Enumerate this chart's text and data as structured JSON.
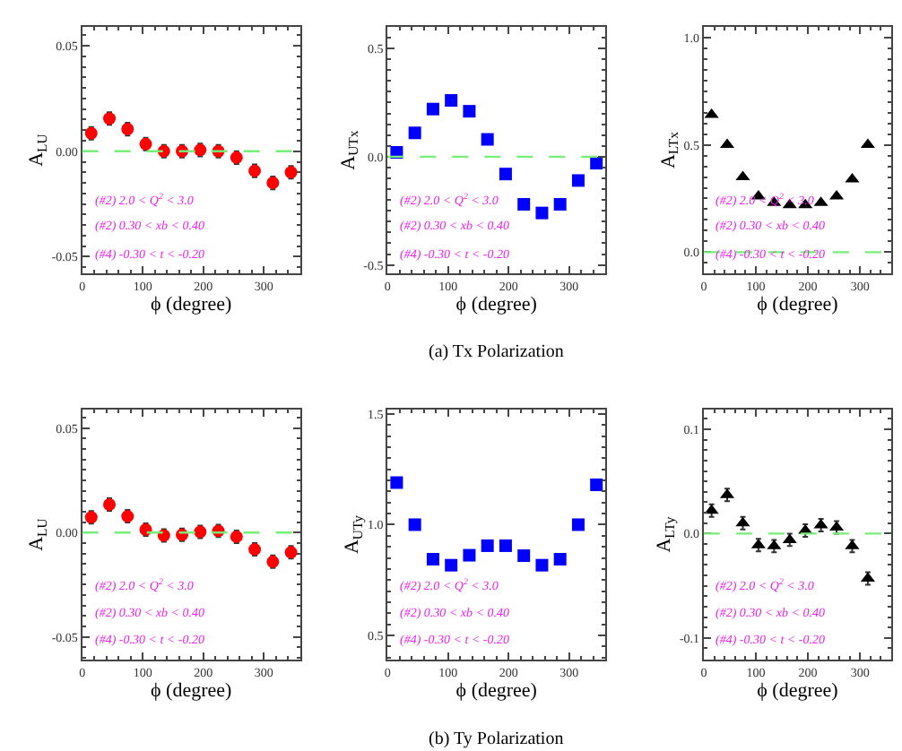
{
  "chart_data": [
    {
      "type": "scatter",
      "xlabel": "ϕ (degree)",
      "ylabel": "A$_{LU}$",
      "marker": "circle",
      "color": "#ff0000",
      "x": [
        15,
        45,
        75,
        105,
        135,
        165,
        195,
        225,
        255,
        285,
        315,
        345
      ],
      "values": [
        0.0085,
        0.0155,
        0.0105,
        0.0034,
        0.0,
        0.0,
        0.0006,
        0.0,
        -0.003,
        -0.0093,
        -0.015,
        -0.01
      ],
      "errors": [
        0.003,
        0.003,
        0.003,
        0.003,
        0.003,
        0.003,
        0.003,
        0.003,
        0.003,
        0.003,
        0.003,
        0.003
      ],
      "xlim": [
        0,
        360
      ],
      "xticks": [
        0,
        100,
        200,
        300
      ],
      "ylim": [
        -0.058,
        0.059
      ],
      "yticks": [
        {
          "value": -0.05,
          "label": "-0.05"
        },
        {
          "value": 0,
          "label": "0.00"
        },
        {
          "value": 0.05,
          "label": "0.05"
        }
      ],
      "ref_lines": [
        {
          "axis": "y",
          "value": 0,
          "color": "#77ee77",
          "line_style": "dashed"
        }
      ],
      "annotations": [
        "(#2) 2.0 < Q$^{2}$ < 3.0",
        "(#2) 0.30 < xb < 0.40",
        "(#4) -0.30 < t < -0.20"
      ]
    },
    {
      "type": "scatter",
      "xlabel": "ϕ (degree)",
      "ylabel": "A$_{UTx}$",
      "marker": "square",
      "color": "#0000ff",
      "x": [
        15,
        45,
        75,
        105,
        135,
        165,
        195,
        225,
        255,
        285,
        315,
        345
      ],
      "values": [
        0.02,
        0.11,
        0.22,
        0.26,
        0.21,
        0.08,
        -0.08,
        -0.22,
        -0.26,
        -0.22,
        -0.11,
        -0.03
      ],
      "xlim": [
        0,
        360
      ],
      "xticks": [
        0,
        100,
        200,
        300
      ],
      "ylim": [
        -0.54,
        0.6
      ],
      "yticks": [
        {
          "value": -0.5,
          "label": "-0.5"
        },
        {
          "value": 0,
          "label": "0.0"
        },
        {
          "value": 0.5,
          "label": "0.5"
        }
      ],
      "ref_lines": [
        {
          "axis": "y",
          "value": 0,
          "color": "#77ee77",
          "line_style": "dashed"
        }
      ],
      "annotations": [
        "(#2) 2.0 < Q$^{2}$ < 3.0",
        "(#2) 0.30 < xb < 0.40",
        "(#4) -0.30 < t < -0.20",
        "(a) Tx Polarization"
      ]
    },
    {
      "type": "scatter",
      "xlabel": "ϕ (degree)",
      "ylabel": "A$_{LTx}$",
      "marker": "triangle",
      "color": "#000000",
      "x": [
        15,
        45,
        75,
        105,
        135,
        165,
        195,
        225,
        255,
        285,
        315
      ],
      "values": [
        0.64,
        0.5,
        0.35,
        0.26,
        0.23,
        0.22,
        0.22,
        0.23,
        0.26,
        0.34,
        0.5
      ],
      "xlim": [
        0,
        360
      ],
      "xticks": [
        0,
        100,
        200,
        300
      ],
      "ylim": [
        -0.1,
        1.05
      ],
      "yticks": [
        {
          "value": 0,
          "label": "0.0"
        },
        {
          "value": 0.5,
          "label": "0.5"
        },
        {
          "value": 1,
          "label": "1.0"
        }
      ],
      "ref_lines": [
        {
          "axis": "y",
          "value": 0,
          "color": "#77ee77",
          "line_style": "dashed"
        }
      ],
      "annotations": [
        "(#2) 2.0 < Q$^{2}$ < 3.0",
        "(#2) 0.30 < xb < 0.40",
        "(#4) -0.30 < t < -0.20"
      ]
    },
    {
      "type": "scatter",
      "xlabel": "ϕ (degree)",
      "ylabel": "A$_{LU}$",
      "marker": "circle",
      "color": "#ff0000",
      "x": [
        15,
        45,
        75,
        105,
        135,
        165,
        195,
        225,
        255,
        285,
        315,
        345
      ],
      "values": [
        0.0073,
        0.0134,
        0.0078,
        0.0014,
        -0.0014,
        -0.0011,
        0.0003,
        0.0008,
        -0.002,
        -0.0081,
        -0.014,
        -0.0095
      ],
      "errors": [
        0.003,
        0.003,
        0.003,
        0.003,
        0.003,
        0.003,
        0.003,
        0.003,
        0.003,
        0.003,
        0.003,
        0.003
      ],
      "xlim": [
        0,
        360
      ],
      "xticks": [
        0,
        100,
        200,
        300
      ],
      "ylim": [
        -0.061,
        0.059
      ],
      "yticks": [
        {
          "value": -0.05,
          "label": "-0.05"
        },
        {
          "value": 0,
          "label": "0.00"
        },
        {
          "value": 0.05,
          "label": "0.05"
        }
      ],
      "ref_lines": [
        {
          "axis": "y",
          "value": 0,
          "color": "#77ee77",
          "line_style": "dashed"
        }
      ],
      "annotations": [
        "(#2) 2.0 < Q$^{2}$ < 3.0",
        "(#2) 0.30 < xb < 0.40",
        "(#4) -0.30 < t < -0.20"
      ]
    },
    {
      "type": "scatter",
      "xlabel": "ϕ (degree)",
      "ylabel": "A$_{UTy}$",
      "marker": "square",
      "color": "#0000ff",
      "x": [
        15,
        45,
        75,
        105,
        135,
        165,
        195,
        225,
        255,
        285,
        315,
        345
      ],
      "values": [
        1.19,
        1.0,
        0.844,
        0.817,
        0.862,
        0.905,
        0.905,
        0.86,
        0.817,
        0.844,
        1.0,
        1.18
      ],
      "xlim": [
        0,
        360
      ],
      "xticks": [
        0,
        100,
        200,
        300
      ],
      "ylim": [
        0.39,
        1.52
      ],
      "yticks": [
        {
          "value": 0.5,
          "label": "0.5"
        },
        {
          "value": 1,
          "label": "1.0"
        },
        {
          "value": 1.5,
          "label": "1.5"
        }
      ],
      "annotations": [
        "(#2) 2.0 < Q$^{2}$ < 3.0",
        "(#2) 0.30 < xb < 0.40",
        "(#4) -0.30 < t < -0.20",
        "(b) Ty Polarization"
      ]
    },
    {
      "type": "scatter",
      "xlabel": "ϕ (degree)",
      "ylabel": "A$_{LTy}$",
      "marker": "triangle",
      "color": "#000000",
      "x": [
        15,
        45,
        75,
        105,
        135,
        165,
        195,
        225,
        255,
        285,
        315
      ],
      "values": [
        0.022,
        0.037,
        0.01,
        -0.011,
        -0.012,
        -0.006,
        0.003,
        0.008,
        0.006,
        -0.012,
        -0.043
      ],
      "errors": [
        0.006,
        0.006,
        0.006,
        0.006,
        0.006,
        0.006,
        0.006,
        0.006,
        0.006,
        0.006,
        0.006
      ],
      "xlim": [
        0,
        360
      ],
      "xticks": [
        0,
        100,
        200,
        300
      ],
      "ylim": [
        -0.121,
        0.119
      ],
      "yticks": [
        {
          "value": -0.1,
          "label": "-0.1"
        },
        {
          "value": 0,
          "label": "0.0"
        },
        {
          "value": 0.1,
          "label": "0.1"
        }
      ],
      "ref_lines": [
        {
          "axis": "y",
          "value": 0,
          "color": "#77ee77",
          "line_style": "dashed"
        }
      ],
      "annotations": [
        "(#2) 2.0 < Q$^{2}$ < 3.0",
        "(#2) 0.30 < xb < 0.40",
        "(#4) -0.30 < t < -0.20"
      ]
    }
  ]
}
